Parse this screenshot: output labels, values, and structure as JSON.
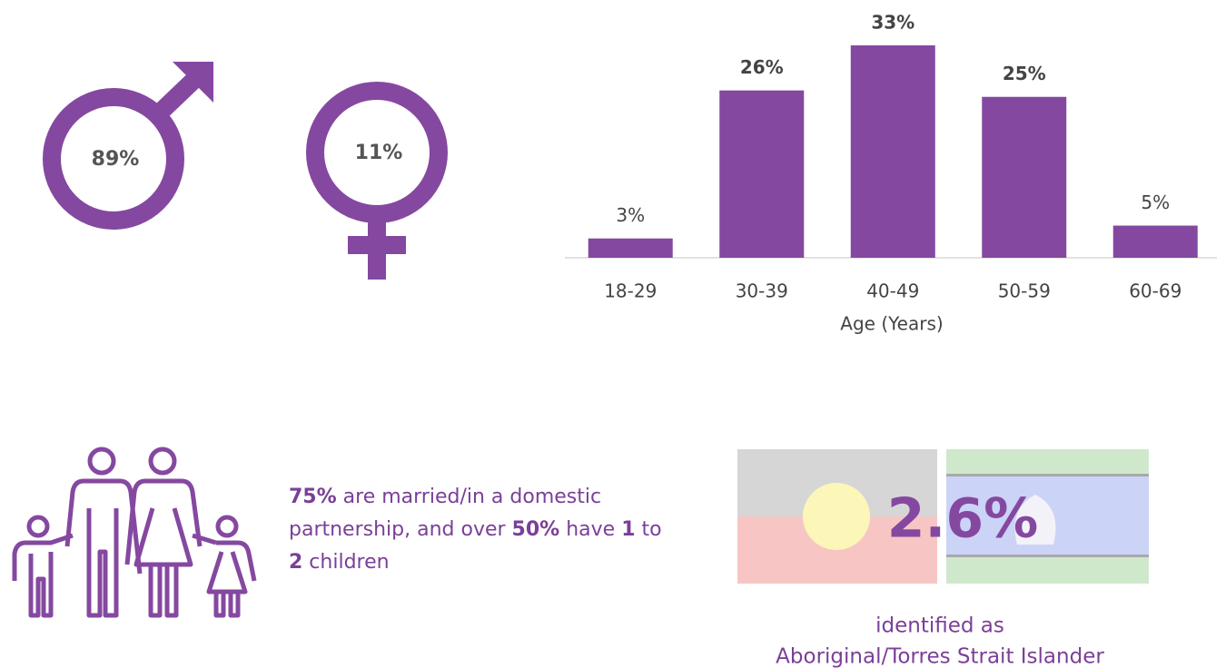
{
  "gender": {
    "male": "89%",
    "female": "11%"
  },
  "chart_data": {
    "type": "bar",
    "categories": [
      "18-29",
      "30-39",
      "40-49",
      "50-59",
      "60-69"
    ],
    "values": [
      3,
      26,
      33,
      25,
      5
    ],
    "value_labels": [
      "3%",
      "26%",
      "33%",
      "25%",
      "5%"
    ],
    "color": "#8548a0",
    "xlabel": "Age (Years)"
  },
  "family": {
    "segments": [
      {
        "text": "75%",
        "bold": true
      },
      {
        "text": " are married/in a domestic partnership, and over ",
        "bold": false
      },
      {
        "text": "50%",
        "bold": true
      },
      {
        "text": " have ",
        "bold": false
      },
      {
        "text": "1",
        "bold": true
      },
      {
        "text": " to ",
        "bold": false
      },
      {
        "text": "2",
        "bold": true
      },
      {
        "text": " children",
        "bold": false
      }
    ]
  },
  "indigenous": {
    "value": "2.6%",
    "line1": "identified as",
    "line2": "Aboriginal/Torres Strait Islander"
  }
}
